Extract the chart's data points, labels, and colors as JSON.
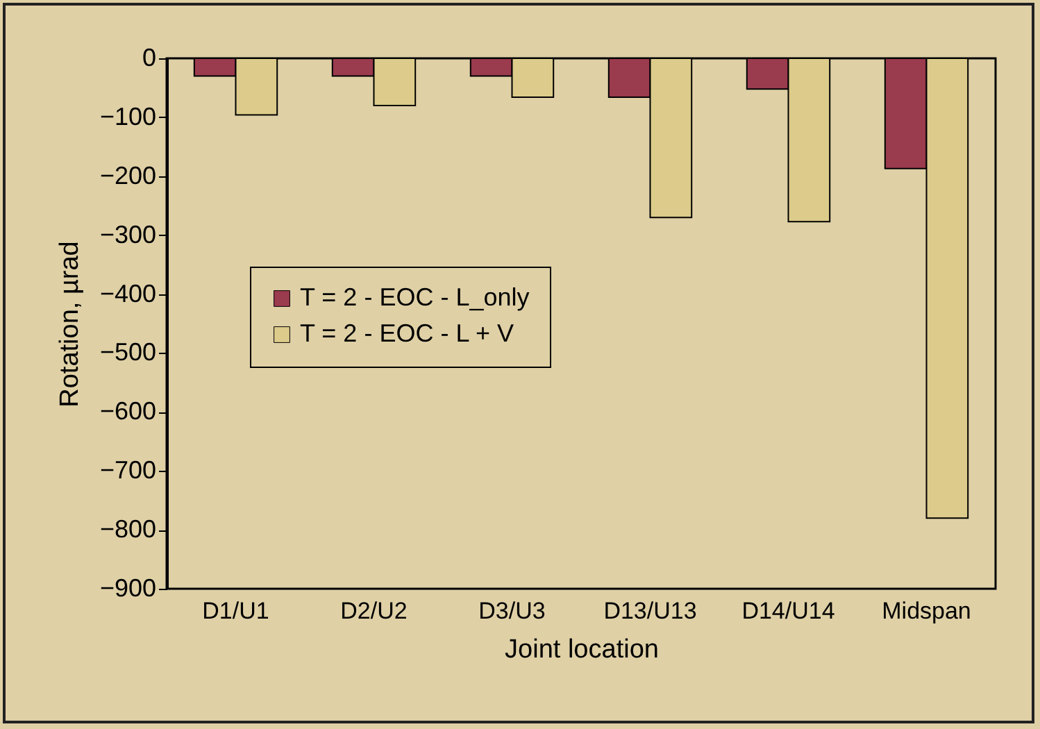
{
  "chart_data": {
    "type": "bar",
    "xlabel": "Joint location",
    "ylabel": "Rotation, µrad",
    "categories": [
      "D1/U1",
      "D2/U2",
      "D3/U3",
      "D13/U13",
      "D14/U14",
      "Midspan"
    ],
    "series": [
      {
        "name": "T = 2 - EOC - L_only",
        "color": "#9b3b4e",
        "values": [
          -30,
          -30,
          -30,
          -66,
          -52,
          -187
        ]
      },
      {
        "name": "T = 2 - EOC - L + V",
        "color": "#dccb8a",
        "values": [
          -96,
          -80,
          -66,
          -270,
          -277,
          -780
        ]
      }
    ],
    "ylim": [
      -900,
      0
    ],
    "yticks": [
      -900,
      -800,
      -700,
      -600,
      -500,
      -400,
      -300,
      -200,
      -100,
      0
    ],
    "grid": false,
    "legend": "left"
  }
}
